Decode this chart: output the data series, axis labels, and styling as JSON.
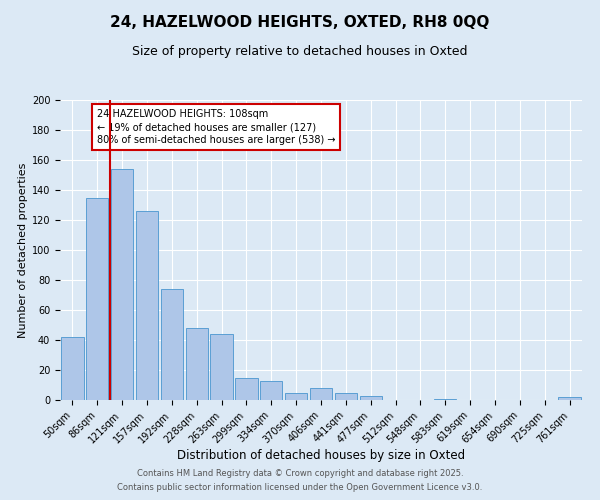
{
  "title": "24, HAZELWOOD HEIGHTS, OXTED, RH8 0QQ",
  "subtitle": "Size of property relative to detached houses in Oxted",
  "xlabel": "Distribution of detached houses by size in Oxted",
  "ylabel": "Number of detached properties",
  "bar_labels": [
    "50sqm",
    "86sqm",
    "121sqm",
    "157sqm",
    "192sqm",
    "228sqm",
    "263sqm",
    "299sqm",
    "334sqm",
    "370sqm",
    "406sqm",
    "441sqm",
    "477sqm",
    "512sqm",
    "548sqm",
    "583sqm",
    "619sqm",
    "654sqm",
    "690sqm",
    "725sqm",
    "761sqm"
  ],
  "bar_values": [
    42,
    135,
    154,
    126,
    74,
    48,
    44,
    15,
    13,
    5,
    8,
    5,
    3,
    0,
    0,
    1,
    0,
    0,
    0,
    0,
    2
  ],
  "bar_color": "#aec6e8",
  "bar_edge_color": "#5a9fd4",
  "vline_color": "#cc0000",
  "annotation_title": "24 HAZELWOOD HEIGHTS: 108sqm",
  "annotation_line1": "← 19% of detached houses are smaller (127)",
  "annotation_line2": "80% of semi-detached houses are larger (538) →",
  "annotation_box_color": "#ffffff",
  "annotation_box_edge": "#cc0000",
  "ylim": [
    0,
    200
  ],
  "yticks": [
    0,
    20,
    40,
    60,
    80,
    100,
    120,
    140,
    160,
    180,
    200
  ],
  "background_color": "#dce9f5",
  "plot_bg_color": "#dce9f5",
  "footer_line1": "Contains HM Land Registry data © Crown copyright and database right 2025.",
  "footer_line2": "Contains public sector information licensed under the Open Government Licence v3.0.",
  "title_fontsize": 11,
  "subtitle_fontsize": 9,
  "xlabel_fontsize": 8.5,
  "ylabel_fontsize": 8,
  "tick_fontsize": 7,
  "footer_fontsize": 6,
  "annotation_fontsize": 7
}
